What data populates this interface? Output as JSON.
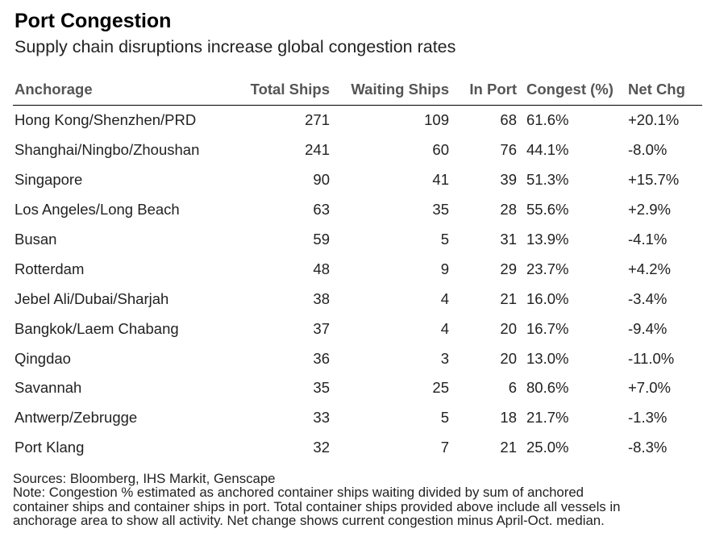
{
  "title": "Port Congestion",
  "subtitle": "Supply chain disruptions increase global congestion rates",
  "chart_data": {
    "type": "table",
    "title": "Port Congestion",
    "subtitle": "Supply chain disruptions increase global congestion rates",
    "columns": [
      "Anchorage",
      "Total Ships",
      "Waiting Ships",
      "In Port",
      "Congest (%)",
      "Net Chg"
    ],
    "rows": [
      [
        "Hong Kong/Shenzhen/PRD",
        "271",
        "109",
        "68",
        "61.6%",
        "+20.1%"
      ],
      [
        "Shanghai/Ningbo/Zhoushan",
        "241",
        "60",
        "76",
        "44.1%",
        "-8.0%"
      ],
      [
        "Singapore",
        "90",
        "41",
        "39",
        "51.3%",
        "+15.7%"
      ],
      [
        "Los Angeles/Long Beach",
        "63",
        "35",
        "28",
        "55.6%",
        "+2.9%"
      ],
      [
        "Busan",
        "59",
        "5",
        "31",
        "13.9%",
        "-4.1%"
      ],
      [
        "Rotterdam",
        "48",
        "9",
        "29",
        "23.7%",
        "+4.2%"
      ],
      [
        "Jebel Ali/Dubai/Sharjah",
        "38",
        "4",
        "21",
        "16.0%",
        "-3.4%"
      ],
      [
        "Bangkok/Laem Chabang",
        "37",
        "4",
        "20",
        "16.7%",
        "-9.4%"
      ],
      [
        "Qingdao",
        "36",
        "3",
        "20",
        "13.0%",
        "-11.0%"
      ],
      [
        "Savannah",
        "35",
        "25",
        "6",
        "80.6%",
        "+7.0%"
      ],
      [
        "Antwerp/Zebrugge",
        "33",
        "5",
        "18",
        "21.7%",
        "-1.3%"
      ],
      [
        "Port Klang",
        "32",
        "7",
        "21",
        "25.0%",
        "-8.3%"
      ]
    ]
  },
  "footer": {
    "sources": "Sources: Bloomberg, IHS Markit, Genscape",
    "note_lines": [
      "Note: Congestion % estimated as anchored container ships waiting divided by sum of anchored",
      "container ships and container ships in port. Total container ships provided above include all vessels in",
      "anchorage area to show all activity. Net change shows current congestion minus April-Oct. median."
    ]
  }
}
